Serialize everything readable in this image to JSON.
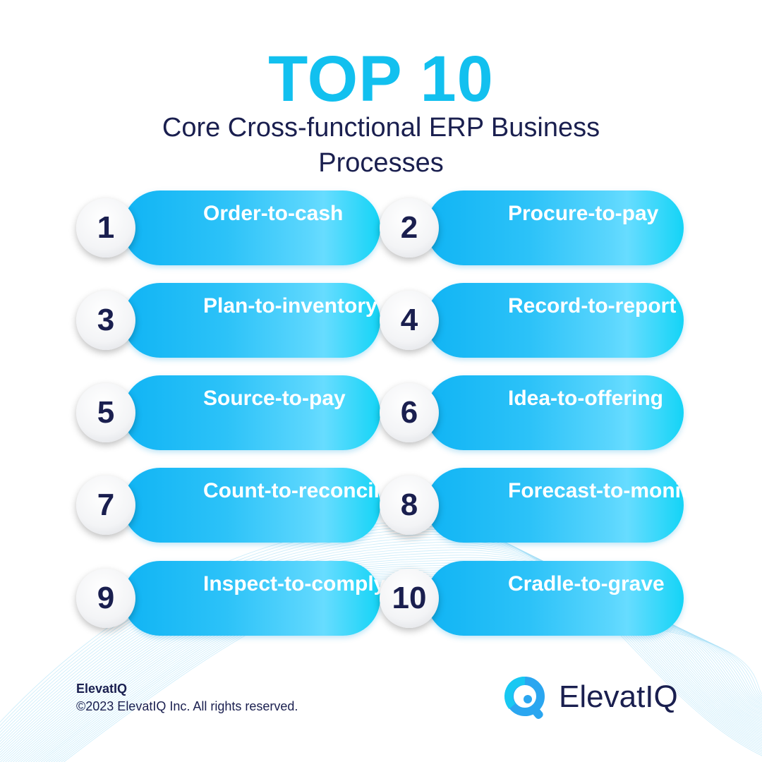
{
  "header": {
    "title": "TOP 10",
    "subtitle": "Core Cross-functional ERP Business Processes"
  },
  "processes": [
    {
      "number": "1",
      "label": "Order-to-cash"
    },
    {
      "number": "2",
      "label": "Procure-to-pay"
    },
    {
      "number": "3",
      "label": "Plan-to-inventory"
    },
    {
      "number": "4",
      "label": "Record-to-report"
    },
    {
      "number": "5",
      "label": "Source-to-pay"
    },
    {
      "number": "6",
      "label": "Idea-to-offering"
    },
    {
      "number": "7",
      "label": "Count-to-reconcile"
    },
    {
      "number": "8",
      "label": "Forecast-to-monitor"
    },
    {
      "number": "9",
      "label": "Inspect-to-comply"
    },
    {
      "number": "10",
      "label": "Cradle-to-grave"
    }
  ],
  "footer": {
    "brand": "ElevatIQ",
    "copyright": "©2023 ElevatIQ Inc. All rights reserved.",
    "logo_text": "ElevatIQ"
  },
  "colors": {
    "accent": "#12c0ef",
    "navy": "#1a1f4f",
    "pill_start": "#10b4f4",
    "pill_end": "#14d4f6"
  }
}
